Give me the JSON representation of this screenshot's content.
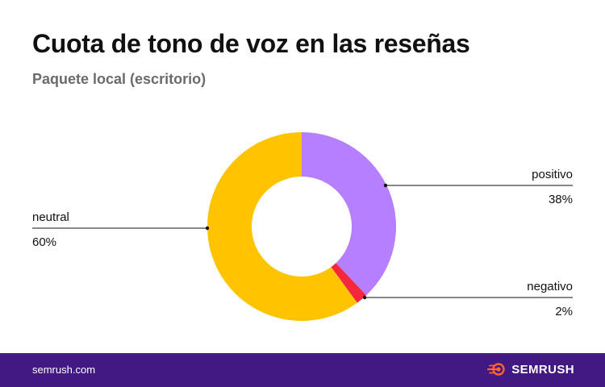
{
  "header": {
    "title": "Cuota de tono de voz en las reseñas",
    "subtitle": "Paquete local (escritorio)"
  },
  "chart_data": {
    "type": "pie",
    "variant": "donut",
    "title": "Cuota de tono de voz en las reseñas",
    "subtitle": "Paquete local (escritorio)",
    "series": [
      {
        "name": "positivo",
        "value": 38,
        "label": "38%",
        "color": "#B57FFF"
      },
      {
        "name": "negativo",
        "value": 2,
        "label": "2%",
        "color": "#F5273C"
      },
      {
        "name": "neutral",
        "value": 60,
        "label": "60%",
        "color": "#FFC300"
      }
    ]
  },
  "footer": {
    "url": "semrush.com",
    "brand": "SEMRUSH",
    "brand_icon": "semrush-fire-icon",
    "bg_color": "#421983"
  }
}
